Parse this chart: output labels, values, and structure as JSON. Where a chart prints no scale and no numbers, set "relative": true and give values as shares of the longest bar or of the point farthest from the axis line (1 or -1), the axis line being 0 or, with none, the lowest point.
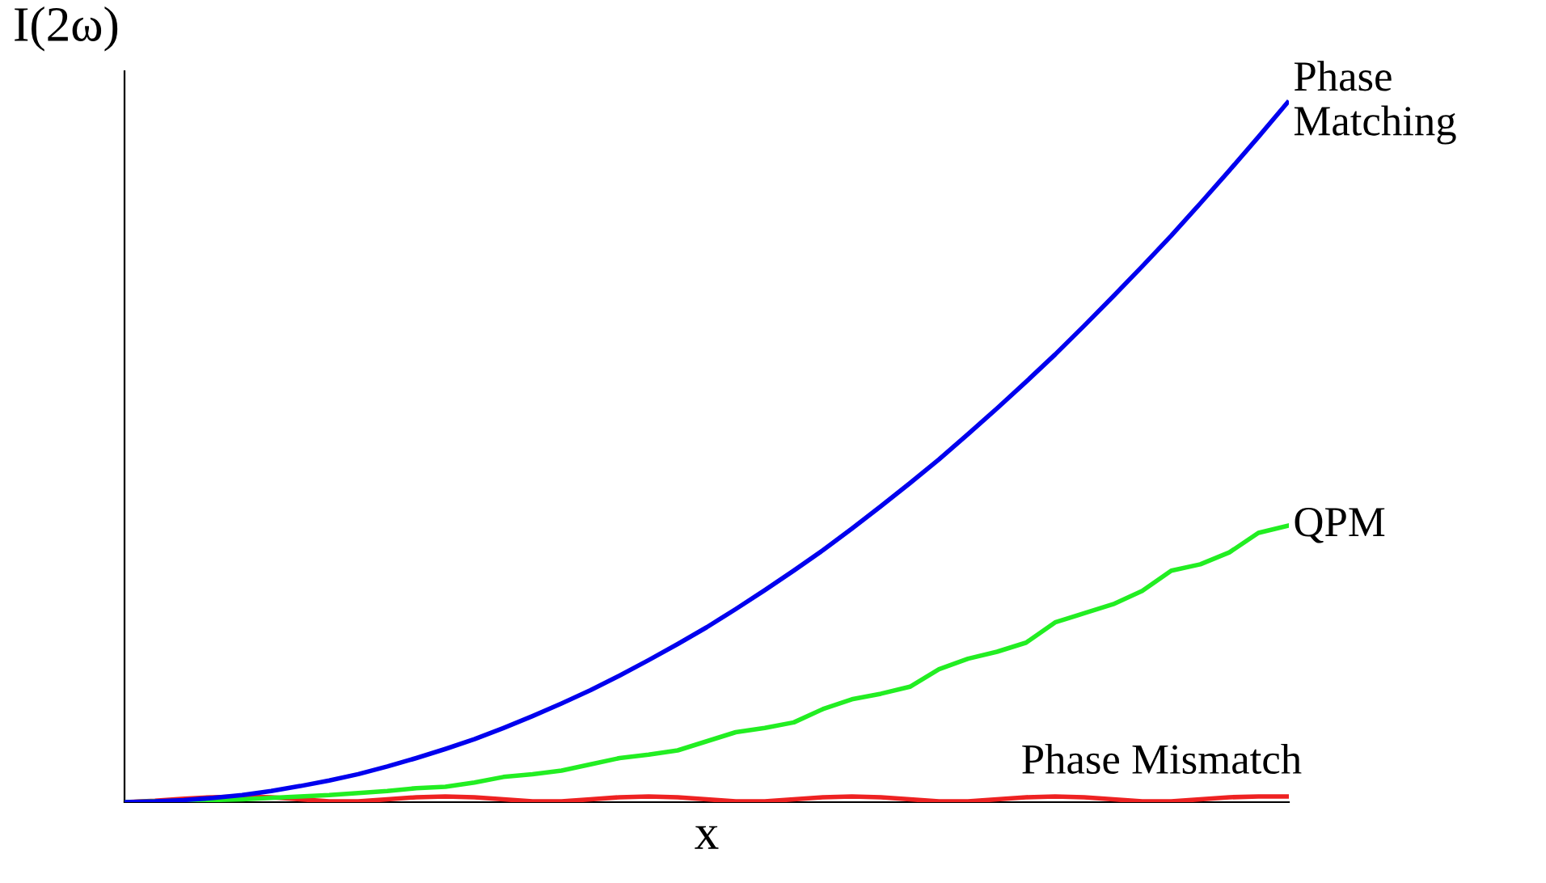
{
  "chart_data": {
    "type": "line",
    "relative": true,
    "xlabel": "x",
    "ylabel": "I(2ω)",
    "categories": [
      null,
      null,
      null,
      null,
      null,
      null,
      null,
      null,
      null,
      null,
      null,
      null,
      null,
      null,
      null,
      null,
      null,
      null,
      null,
      null,
      null,
      null,
      null,
      null,
      null,
      null,
      null,
      null,
      null,
      null,
      null,
      null,
      null,
      null,
      null,
      null,
      null,
      null,
      null,
      null,
      null
    ],
    "series": [
      {
        "name": "Phase\nMatching",
        "color": "#0000ee",
        "values": [
          0,
          0.001,
          0.003,
          0.006,
          0.01,
          0.016,
          0.023,
          0.031,
          0.04,
          0.051,
          0.063,
          0.076,
          0.09,
          0.106,
          0.123,
          0.141,
          0.16,
          0.181,
          0.203,
          0.226,
          0.25,
          0.276,
          0.303,
          0.331,
          0.36,
          0.391,
          0.423,
          0.456,
          0.49,
          0.526,
          0.563,
          0.601,
          0.64,
          0.681,
          0.723,
          0.766,
          0.81,
          0.856,
          0.903,
          0.951,
          1
        ]
      },
      {
        "name": "QPM",
        "color": "#22ee22",
        "values": [
          0,
          0.001,
          0.002,
          0.003,
          0.004,
          0.006,
          0.008,
          0.01,
          0.013,
          0.016,
          0.02,
          0.022,
          0.028,
          0.036,
          0.04,
          0.045,
          0.054,
          0.063,
          0.068,
          0.074,
          0.087,
          0.1,
          0.106,
          0.114,
          0.133,
          0.147,
          0.155,
          0.165,
          0.19,
          0.205,
          0.215,
          0.228,
          0.257,
          0.27,
          0.283,
          0.302,
          0.331,
          0.34,
          0.357,
          0.385,
          0.395
        ]
      },
      {
        "name": "Phase Mismatch",
        "color": "#ee2222",
        "values": [
          0,
          0.002,
          0.005,
          0.007,
          0.008,
          0.007,
          0.004,
          0.001,
          0.001,
          0.004,
          0.007,
          0.008,
          0.007,
          0.004,
          0.001,
          0.001,
          0.004,
          0.007,
          0.008,
          0.007,
          0.004,
          0.001,
          0.001,
          0.004,
          0.007,
          0.008,
          0.007,
          0.004,
          0.001,
          0.001,
          0.004,
          0.007,
          0.008,
          0.007,
          0.004,
          0.001,
          0.001,
          0.004,
          0.007,
          0.008,
          0.008
        ]
      }
    ]
  }
}
